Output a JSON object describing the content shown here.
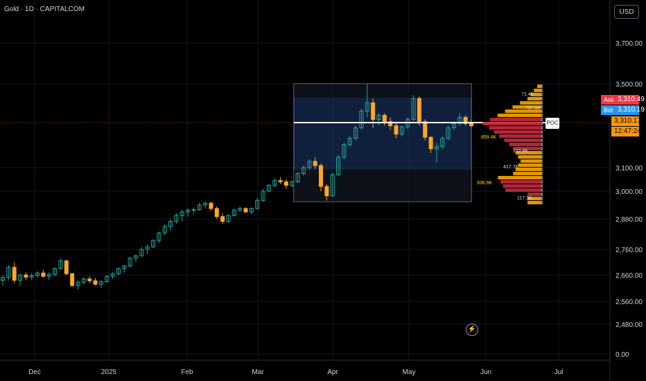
{
  "header": {
    "symbol_title": "Gold · 1D · CAPITALCOM",
    "currency": "USD"
  },
  "price_axis": {
    "ticks": [
      "3,700.00",
      "3,500.00",
      "3,100.00",
      "3,000.00",
      "2,880.00",
      "2,760.00",
      "2,660.00",
      "2,560.00",
      "2,480.00",
      "0.00"
    ]
  },
  "time_axis": {
    "ticks": [
      "Dec",
      "2025",
      "Feb",
      "Mar",
      "Apr",
      "May",
      "Jun",
      "Jul"
    ]
  },
  "quote": {
    "ask_label": "Ask",
    "ask_value": "3,310.49",
    "bid_label": "Bid",
    "bid_value": "3,310.19",
    "last_value": "3,310.17",
    "countdown": "12:47:24"
  },
  "volume_profile": {
    "poc_label": "POC",
    "labels": [
      "71.4K",
      "787.5K",
      "859.4K",
      "222.9K",
      "417.7K",
      "936.9K",
      "117.3K"
    ]
  },
  "colors": {
    "up": "#26a69a",
    "down": "#ffa726",
    "ask": "#f23645",
    "bid": "#2196f3",
    "last": "#ff9800",
    "profile_up": "#f7a600",
    "profile_down": "#c62a3c",
    "value_area": "#1e3a6e"
  },
  "chart_data": {
    "type": "candlestick",
    "ohlc": [
      [
        2640,
        2660,
        2620,
        2650
      ],
      [
        2650,
        2700,
        2640,
        2690
      ],
      [
        2690,
        2710,
        2630,
        2640
      ],
      [
        2640,
        2665,
        2620,
        2660
      ],
      [
        2660,
        2670,
        2640,
        2652
      ],
      [
        2652,
        2668,
        2640,
        2658
      ],
      [
        2658,
        2675,
        2650,
        2668
      ],
      [
        2668,
        2680,
        2650,
        2655
      ],
      [
        2655,
        2670,
        2640,
        2662
      ],
      [
        2662,
        2690,
        2655,
        2685
      ],
      [
        2685,
        2725,
        2680,
        2715
      ],
      [
        2715,
        2720,
        2660,
        2665
      ],
      [
        2665,
        2668,
        2615,
        2620
      ],
      [
        2620,
        2640,
        2605,
        2632
      ],
      [
        2632,
        2650,
        2625,
        2645
      ],
      [
        2645,
        2655,
        2630,
        2638
      ],
      [
        2638,
        2648,
        2620,
        2625
      ],
      [
        2625,
        2640,
        2610,
        2635
      ],
      [
        2635,
        2660,
        2630,
        2655
      ],
      [
        2655,
        2670,
        2645,
        2665
      ],
      [
        2665,
        2690,
        2660,
        2685
      ],
      [
        2685,
        2700,
        2670,
        2695
      ],
      [
        2695,
        2730,
        2690,
        2725
      ],
      [
        2725,
        2740,
        2710,
        2735
      ],
      [
        2735,
        2770,
        2730,
        2760
      ],
      [
        2760,
        2780,
        2740,
        2770
      ],
      [
        2770,
        2800,
        2765,
        2795
      ],
      [
        2795,
        2830,
        2785,
        2825
      ],
      [
        2825,
        2860,
        2815,
        2850
      ],
      [
        2850,
        2880,
        2835,
        2870
      ],
      [
        2870,
        2905,
        2860,
        2895
      ],
      [
        2895,
        2920,
        2870,
        2910
      ],
      [
        2910,
        2925,
        2890,
        2918
      ],
      [
        2918,
        2930,
        2900,
        2920
      ],
      [
        2920,
        2950,
        2915,
        2940
      ],
      [
        2940,
        2955,
        2925,
        2948
      ],
      [
        2948,
        2955,
        2915,
        2925
      ],
      [
        2925,
        2935,
        2880,
        2890
      ],
      [
        2890,
        2905,
        2860,
        2870
      ],
      [
        2870,
        2900,
        2865,
        2895
      ],
      [
        2895,
        2925,
        2890,
        2918
      ],
      [
        2918,
        2935,
        2910,
        2925
      ],
      [
        2925,
        2930,
        2905,
        2910
      ],
      [
        2910,
        2930,
        2900,
        2925
      ],
      [
        2925,
        2970,
        2920,
        2960
      ],
      [
        2960,
        3010,
        2955,
        3000
      ],
      [
        3000,
        3030,
        2995,
        3025
      ],
      [
        3025,
        3055,
        3015,
        3045
      ],
      [
        3045,
        3060,
        3030,
        3040
      ],
      [
        3040,
        3050,
        3010,
        3025
      ],
      [
        3025,
        3045,
        3015,
        3040
      ],
      [
        3040,
        3080,
        3035,
        3075
      ],
      [
        3075,
        3110,
        3065,
        3100
      ],
      [
        3100,
        3140,
        3090,
        3130
      ],
      [
        3130,
        3150,
        3095,
        3110
      ],
      [
        3110,
        3120,
        3000,
        3020
      ],
      [
        3020,
        3030,
        2960,
        2980
      ],
      [
        2980,
        3080,
        2975,
        3070
      ],
      [
        3070,
        3160,
        3065,
        3150
      ],
      [
        3150,
        3220,
        3140,
        3210
      ],
      [
        3210,
        3250,
        3200,
        3240
      ],
      [
        3240,
        3300,
        3230,
        3290
      ],
      [
        3290,
        3380,
        3280,
        3370
      ],
      [
        3370,
        3500,
        3340,
        3410
      ],
      [
        3410,
        3430,
        3290,
        3330
      ],
      [
        3330,
        3360,
        3300,
        3350
      ],
      [
        3350,
        3360,
        3300,
        3320
      ],
      [
        3320,
        3340,
        3280,
        3300
      ],
      [
        3300,
        3320,
        3240,
        3260
      ],
      [
        3260,
        3300,
        3250,
        3295
      ],
      [
        3295,
        3340,
        3285,
        3330
      ],
      [
        3330,
        3445,
        3320,
        3430
      ],
      [
        3430,
        3440,
        3300,
        3320
      ],
      [
        3320,
        3330,
        3230,
        3245
      ],
      [
        3245,
        3250,
        3170,
        3190
      ],
      [
        3190,
        3220,
        3125,
        3200
      ],
      [
        3200,
        3250,
        3190,
        3240
      ],
      [
        3240,
        3300,
        3230,
        3290
      ],
      [
        3290,
        3320,
        3280,
        3310
      ],
      [
        3310,
        3360,
        3300,
        3340
      ],
      [
        3340,
        3350,
        3300,
        3310
      ],
      [
        3310,
        3330,
        3290,
        3300
      ]
    ]
  }
}
